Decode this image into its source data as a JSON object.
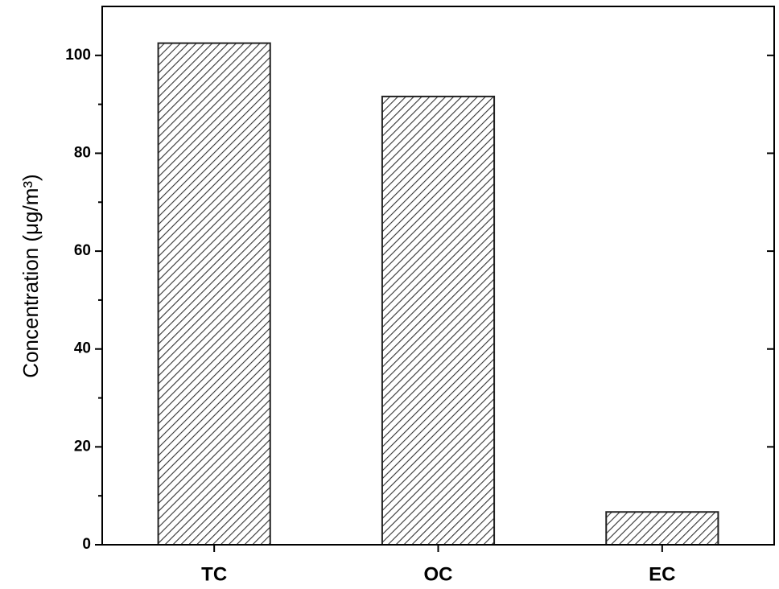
{
  "chart_data": {
    "type": "bar",
    "y_label": "Concentration (μg/m³)",
    "categories": [
      "TC",
      "OC",
      "EC"
    ],
    "values": [
      102.5,
      91.6,
      6.7
    ],
    "color": "#333333",
    "ylim": [
      0,
      110
    ],
    "yticks": [
      0,
      20,
      40,
      60,
      80,
      100
    ],
    "grid": false
  }
}
